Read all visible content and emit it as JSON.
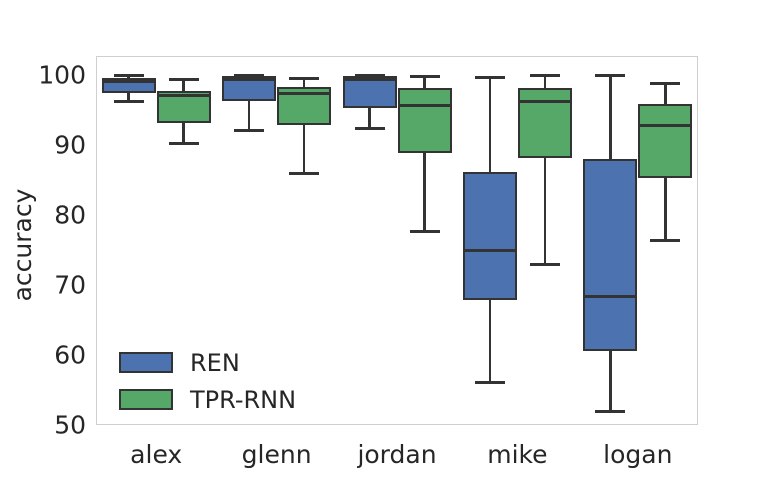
{
  "chart_data": {
    "type": "box",
    "title": "",
    "xlabel": "",
    "ylabel": "accuracy",
    "categories": [
      "alex",
      "glenn",
      "jordan",
      "mike",
      "logan"
    ],
    "y_ticks": [
      50,
      60,
      70,
      80,
      90,
      100
    ],
    "ylim": [
      50.1,
      102.8
    ],
    "grid": false,
    "legend_position": "lower-left",
    "series": [
      {
        "name": "REN",
        "color": "#4c72b0",
        "boxes": [
          {
            "category": "alex",
            "min": 96.3,
            "q1": 97.5,
            "median": 99.2,
            "q3": 99.7,
            "max": 100.0
          },
          {
            "category": "glenn",
            "min": 92.1,
            "q1": 96.4,
            "median": 99.4,
            "q3": 99.9,
            "max": 100.0
          },
          {
            "category": "jordan",
            "min": 92.4,
            "q1": 95.4,
            "median": 99.4,
            "q3": 100.0,
            "max": 100.0
          },
          {
            "category": "mike",
            "min": 56.2,
            "q1": 68.0,
            "median": 75.0,
            "q3": 86.3,
            "max": 99.8
          },
          {
            "category": "logan",
            "min": 52.0,
            "q1": 60.6,
            "median": 68.4,
            "q3": 88.1,
            "max": 100.0
          }
        ]
      },
      {
        "name": "TPR-RNN",
        "color": "#55a868",
        "boxes": [
          {
            "category": "alex",
            "min": 90.3,
            "q1": 93.2,
            "median": 97.1,
            "q3": 97.8,
            "max": 99.4
          },
          {
            "category": "glenn",
            "min": 86.0,
            "q1": 93.0,
            "median": 97.4,
            "q3": 98.4,
            "max": 99.6
          },
          {
            "category": "jordan",
            "min": 77.8,
            "q1": 89.0,
            "median": 95.8,
            "q3": 98.2,
            "max": 99.9
          },
          {
            "category": "mike",
            "min": 73.0,
            "q1": 88.2,
            "median": 96.3,
            "q3": 98.3,
            "max": 100.0
          },
          {
            "category": "logan",
            "min": 76.4,
            "q1": 85.4,
            "median": 92.9,
            "q3": 95.9,
            "max": 98.9
          }
        ]
      }
    ],
    "colors": {
      "box_edge": "#333333",
      "whisker": "#333333",
      "spine": "#cfcfcf",
      "text": "#262626",
      "background": "#ffffff"
    }
  }
}
